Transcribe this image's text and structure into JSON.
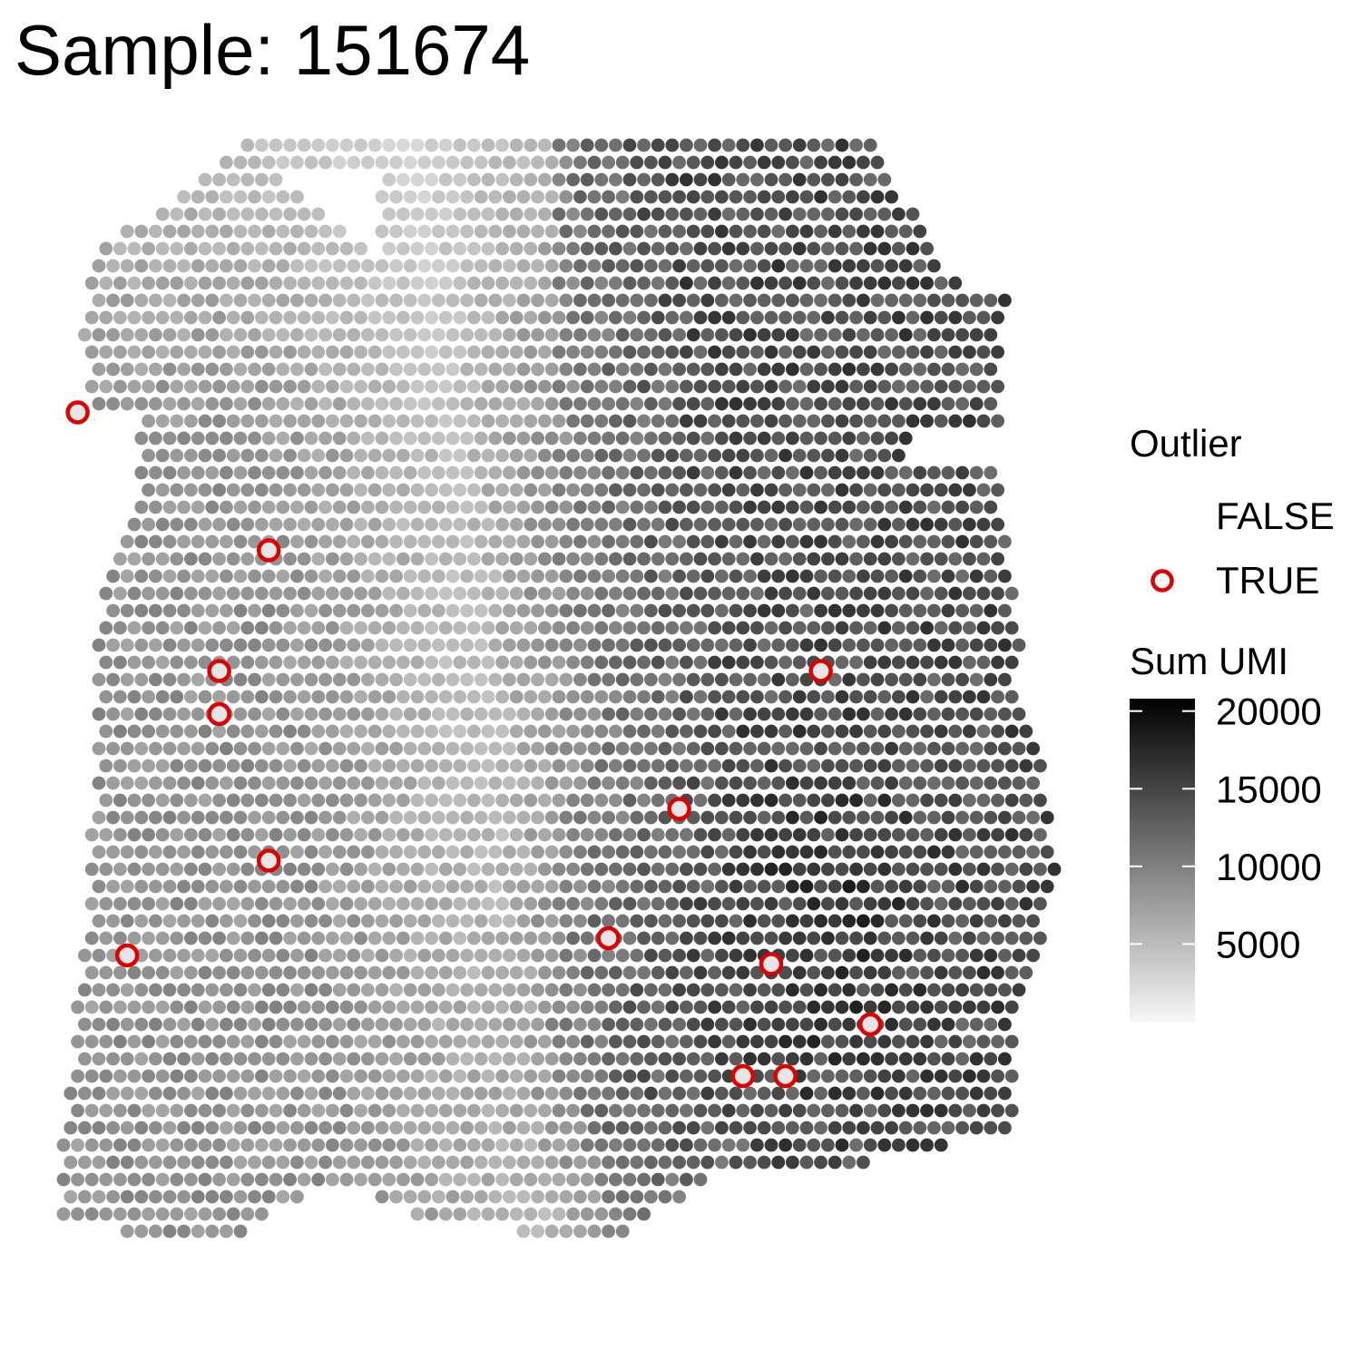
{
  "title": "Sample: 151674",
  "chart_data": {
    "type": "scatter",
    "title": "Sample: 151674",
    "xlabel": "",
    "ylabel": "",
    "grid": false,
    "legend_placement": "right",
    "legend": {
      "outlier_title": "Outlier",
      "outlier_entries": [
        {
          "label": "FALSE",
          "marker": "none"
        },
        {
          "label": "TRUE",
          "marker": "red-ring"
        }
      ],
      "colorbar_title": "Sum UMI",
      "colorbar_ticks": [
        20000,
        15000,
        10000,
        5000
      ],
      "colorbar_range": [
        0,
        20800
      ],
      "colorbar_colors": {
        "low": "#f7f7f7",
        "high": "#000000"
      }
    },
    "outlier_color": "#e00000",
    "spot_grid": {
      "xlim": [
        0,
        71
      ],
      "ylim": [
        0,
        75
      ],
      "spacing": 1,
      "row_offset": 0.5,
      "description_of_units": "array grid units"
    },
    "outlier_spots": [
      {
        "x": 1,
        "y": 15.5
      },
      {
        "x": 11,
        "y": 30.5
      },
      {
        "x": 11,
        "y": 33.0
      },
      {
        "x": 14.5,
        "y": 23.5
      },
      {
        "x": 14.5,
        "y": 41.5
      },
      {
        "x": 4.5,
        "y": 47.0
      },
      {
        "x": 43.5,
        "y": 38.5
      },
      {
        "x": 38.5,
        "y": 46.0
      },
      {
        "x": 53.5,
        "y": 30.5
      },
      {
        "x": 50,
        "y": 47.5
      },
      {
        "x": 57,
        "y": 51.0
      },
      {
        "x": 48,
        "y": 54.0
      },
      {
        "x": 51,
        "y": 54.0
      }
    ],
    "sum_umi_hotspots": [
      {
        "x": 53,
        "y": 45,
        "value": 17000
      },
      {
        "x": 41,
        "y": 54,
        "value": 15000
      },
      {
        "x": 42,
        "y": 44,
        "value": 13000
      },
      {
        "x": 43,
        "y": 25,
        "value": 11000
      }
    ],
    "sum_umi_typical": {
      "left_region": 7000,
      "center_band": 3500,
      "right_region": 13000
    }
  }
}
